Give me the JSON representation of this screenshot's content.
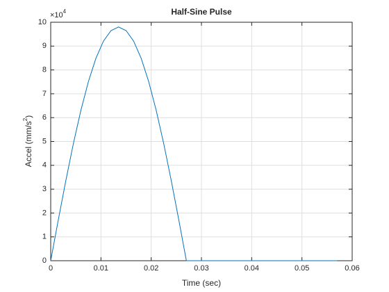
{
  "chart_data": {
    "type": "line",
    "title": "Half-Sine Pulse",
    "xlabel": "Time (sec)",
    "ylabel_parts": [
      "Accel (mm/s",
      "2",
      ")"
    ],
    "y_multiplier": {
      "base": "×10",
      "power": "4"
    },
    "x": [
      0,
      0.0015,
      0.003,
      0.0045,
      0.006,
      0.0075,
      0.009,
      0.0105,
      0.012,
      0.0135,
      0.015,
      0.0165,
      0.018,
      0.0195,
      0.021,
      0.0225,
      0.024,
      0.0255,
      0.027,
      0.057
    ],
    "values": [
      0,
      17000,
      33500,
      49000,
      63000,
      75100,
      84900,
      92100,
      96500,
      98000,
      96500,
      92100,
      84900,
      75100,
      63000,
      49000,
      33500,
      17000,
      0,
      0
    ],
    "color": "#0072bd",
    "xlim": [
      0,
      0.06
    ],
    "xticks": [
      0,
      0.01,
      0.02,
      0.03,
      0.04,
      0.05,
      0.06
    ],
    "ylim": [
      0,
      100000
    ],
    "yticks": [
      {
        "value": 0,
        "label": "0"
      },
      {
        "value": 10000,
        "label": "1"
      },
      {
        "value": 20000,
        "label": "2"
      },
      {
        "value": 30000,
        "label": "3"
      },
      {
        "value": 40000,
        "label": "4"
      },
      {
        "value": 50000,
        "label": "5"
      },
      {
        "value": 60000,
        "label": "6"
      },
      {
        "value": 70000,
        "label": "7"
      },
      {
        "value": 80000,
        "label": "8"
      },
      {
        "value": 90000,
        "label": "9"
      },
      {
        "value": 100000,
        "label": "10"
      }
    ],
    "grid": true
  }
}
